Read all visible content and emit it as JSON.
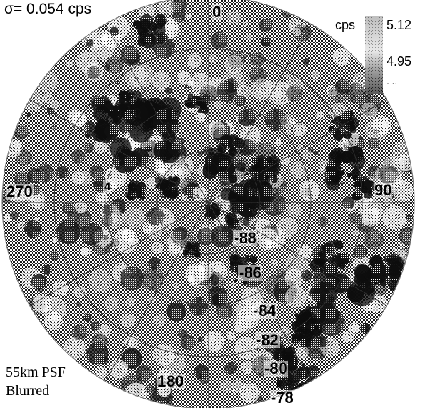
{
  "sigma_label": "σ= 0.054 cps",
  "psf_label_line1": "55km PSF",
  "psf_label_line2": "Blurred",
  "colorbar": {
    "title": "cps",
    "max_label": "5.12",
    "mid_label": "4.95",
    "min_label": "· ··"
  },
  "longitude_labels": {
    "top": "0",
    "right": "90",
    "bottom": "180",
    "left": "270"
  },
  "latitude_labels": [
    "-88",
    "-86",
    "-84",
    "-82",
    "-80",
    "-78"
  ],
  "lowercase_marker": "4"
}
